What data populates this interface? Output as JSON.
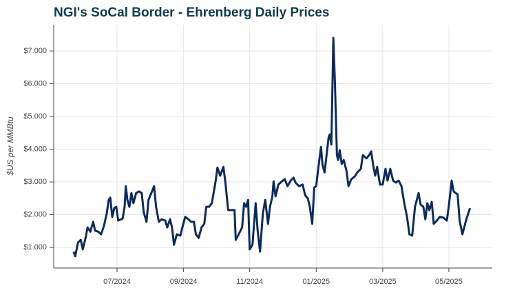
{
  "chart_data": {
    "type": "line",
    "title": "NGI's SoCal Border - Ehrenberg Daily Prices",
    "y_label": "$US per MMBtu",
    "grid": true,
    "xlim": [
      2024.341,
      2025.442
    ],
    "ylim": [
      0.37,
      7.8
    ],
    "xticks": [
      {
        "value": 2024.5,
        "label": "07/2024"
      },
      {
        "value": 2024.667,
        "label": "09/2024"
      },
      {
        "value": 2024.833,
        "label": "11/2024"
      },
      {
        "value": 2025,
        "label": "01/2025"
      },
      {
        "value": 2025.167,
        "label": "03/2025"
      },
      {
        "value": 2025.333,
        "label": "05/2025"
      }
    ],
    "yticks": [
      {
        "value": 1,
        "label": "$1.000"
      },
      {
        "value": 2,
        "label": "$2.000"
      },
      {
        "value": 3,
        "label": "$3.000"
      },
      {
        "value": 4,
        "label": "$4.000"
      },
      {
        "value": 5,
        "label": "$5.000"
      },
      {
        "value": 6,
        "label": "$6.000"
      },
      {
        "value": 7,
        "label": "$7.000"
      }
    ],
    "x": [
      2024.391,
      2024.395,
      2024.402,
      2024.409,
      2024.414,
      2024.421,
      2024.426,
      2024.433,
      2024.44,
      2024.445,
      2024.453,
      2024.46,
      2024.467,
      2024.474,
      2024.479,
      2024.483,
      2024.488,
      2024.493,
      2024.498,
      2024.503,
      2024.514,
      2024.519,
      2024.522,
      2024.526,
      2024.531,
      2024.536,
      2024.541,
      2024.548,
      2024.555,
      2024.562,
      2024.567,
      2024.574,
      2024.579,
      2024.586,
      2024.593,
      2024.598,
      2024.605,
      2024.612,
      2024.621,
      2024.626,
      2024.633,
      2024.638,
      2024.643,
      2024.65,
      2024.659,
      2024.664,
      2024.671,
      2024.679,
      2024.686,
      2024.693,
      2024.698,
      2024.705,
      2024.712,
      2024.719,
      2024.724,
      2024.731,
      2024.738,
      2024.747,
      2024.752,
      2024.759,
      2024.767,
      2024.772,
      2024.779,
      2024.788,
      2024.795,
      2024.798,
      2024.807,
      2024.814,
      2024.819,
      2024.824,
      2024.829,
      2024.833,
      2024.84,
      2024.848,
      2024.853,
      2024.859,
      2024.866,
      2024.872,
      2024.879,
      2024.884,
      2024.89,
      2024.893,
      2024.898,
      2024.905,
      2024.914,
      2024.921,
      2024.928,
      2024.936,
      2024.943,
      2024.948,
      2024.957,
      2024.966,
      2024.972,
      2024.979,
      2024.984,
      2024.99,
      2024.995,
      2025.0,
      2025.005,
      2025.012,
      2025.016,
      2025.021,
      2025.026,
      2025.031,
      2025.034,
      2025.038,
      2025.043,
      2025.047,
      2025.052,
      2025.055,
      2025.059,
      2025.064,
      2025.069,
      2025.076,
      2025.081,
      2025.088,
      2025.097,
      2025.103,
      2025.112,
      2025.117,
      2025.126,
      2025.133,
      2025.138,
      2025.143,
      2025.148,
      2025.153,
      2025.16,
      2025.167,
      2025.174,
      2025.179,
      2025.186,
      2025.193,
      2025.2,
      2025.207,
      2025.214,
      2025.221,
      2025.228,
      2025.234,
      2025.241,
      2025.248,
      2025.257,
      2025.262,
      2025.269,
      2025.274,
      2025.279,
      2025.284,
      2025.29,
      2025.295,
      2025.303,
      2025.31,
      2025.319,
      2025.328,
      2025.333,
      2025.34,
      2025.345,
      2025.35,
      2025.355,
      2025.36,
      2025.367,
      2025.376,
      2025.386
    ],
    "series": [
      {
        "color": "#0b2a5e",
        "values": [
          0.87,
          0.73,
          1.15,
          1.23,
          0.94,
          1.29,
          1.61,
          1.48,
          1.78,
          1.51,
          1.48,
          1.4,
          1.65,
          2.03,
          2.45,
          2.52,
          1.93,
          2.2,
          2.24,
          1.82,
          1.88,
          2.24,
          2.87,
          2.45,
          2.24,
          2.66,
          2.35,
          2.66,
          2.71,
          2.66,
          2.07,
          1.78,
          2.45,
          2.66,
          2.87,
          2.24,
          1.78,
          1.86,
          1.82,
          1.61,
          1.86,
          1.61,
          1.08,
          1.4,
          1.36,
          1.61,
          1.93,
          1.86,
          1.78,
          1.78,
          1.4,
          1.29,
          1.61,
          1.72,
          2.24,
          2.24,
          2.35,
          2.98,
          3.44,
          3.19,
          3.46,
          2.98,
          2.14,
          2.14,
          2.14,
          1.23,
          1.44,
          1.61,
          2.35,
          2.24,
          2.45,
          0.94,
          1.08,
          2.35,
          1.51,
          0.87,
          2.03,
          2.45,
          1.72,
          2.24,
          2.56,
          3.02,
          2.56,
          2.92,
          3.02,
          3.08,
          2.87,
          3.04,
          3.13,
          2.98,
          2.87,
          2.92,
          2.6,
          2.49,
          2.24,
          1.72,
          2.83,
          2.87,
          3.4,
          4.07,
          3.51,
          3.29,
          3.82,
          4.35,
          4.45,
          4.14,
          7.4,
          6.03,
          3.82,
          3.67,
          3.97,
          3.55,
          3.67,
          3.34,
          2.87,
          3.08,
          3.17,
          3.29,
          3.4,
          3.82,
          3.72,
          3.82,
          3.93,
          3.51,
          3.19,
          3.46,
          2.92,
          2.92,
          3.4,
          3.04,
          3.4,
          3.04,
          2.98,
          3.04,
          2.87,
          2.35,
          1.93,
          1.4,
          1.36,
          2.24,
          2.66,
          2.31,
          2.24,
          1.86,
          2.35,
          2.14,
          2.39,
          1.72,
          1.82,
          1.93,
          1.91,
          1.82,
          2.28,
          3.04,
          2.71,
          2.66,
          2.62,
          1.82,
          1.4,
          1.82,
          2.2
        ]
      }
    ]
  }
}
